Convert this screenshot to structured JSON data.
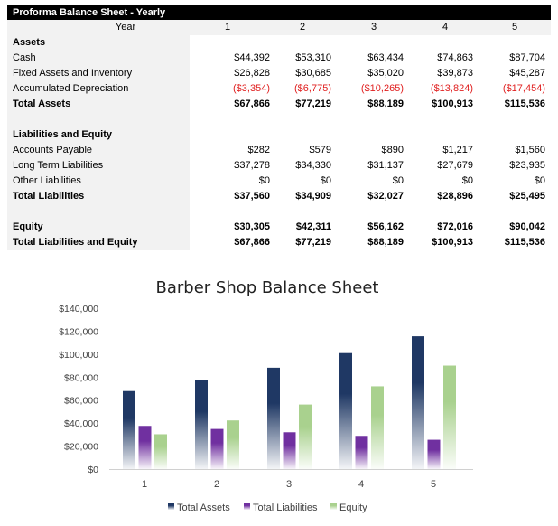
{
  "sheet": {
    "title": "Proforma Balance Sheet - Yearly",
    "year_label": "Year",
    "years": [
      "1",
      "2",
      "3",
      "4",
      "5"
    ],
    "rows": [
      {
        "label": "Assets",
        "bold": true,
        "values": []
      },
      {
        "label": "Cash",
        "values": [
          "$44,392",
          "$53,310",
          "$63,434",
          "$74,863",
          "$87,704"
        ]
      },
      {
        "label": "Fixed Assets and Inventory",
        "values": [
          "$26,828",
          "$30,685",
          "$35,020",
          "$39,873",
          "$45,287"
        ]
      },
      {
        "label": "Accumulated Depreciation",
        "negative": true,
        "values": [
          "($3,354)",
          "($6,775)",
          "($10,265)",
          "($13,824)",
          "($17,454)"
        ]
      },
      {
        "label": "Total Assets",
        "bold": true,
        "values": [
          "$67,866",
          "$77,219",
          "$88,189",
          "$100,913",
          "$115,536"
        ]
      },
      {
        "label": "",
        "values": []
      },
      {
        "label": "Liabilities and Equity",
        "bold": true,
        "values": []
      },
      {
        "label": "Accounts Payable",
        "values": [
          "$282",
          "$579",
          "$890",
          "$1,217",
          "$1,560"
        ]
      },
      {
        "label": "Long Term Liabilities",
        "values": [
          "$37,278",
          "$34,330",
          "$31,137",
          "$27,679",
          "$23,935"
        ]
      },
      {
        "label": "Other Liabilities",
        "values": [
          "$0",
          "$0",
          "$0",
          "$0",
          "$0"
        ]
      },
      {
        "label": "Total Liabilities",
        "bold": true,
        "values": [
          "$37,560",
          "$34,909",
          "$32,027",
          "$28,896",
          "$25,495"
        ]
      },
      {
        "label": "",
        "values": []
      },
      {
        "label": "Equity",
        "bold": true,
        "values": [
          "$30,305",
          "$42,311",
          "$56,162",
          "$72,016",
          "$90,042"
        ]
      },
      {
        "label": "Total Liabilities and Equity",
        "bold": true,
        "values": [
          "$67,866",
          "$77,219",
          "$88,189",
          "$100,913",
          "$115,536"
        ]
      }
    ]
  },
  "chart_data": {
    "type": "bar",
    "title": "Barber Shop Balance Sheet",
    "categories": [
      "1",
      "2",
      "3",
      "4",
      "5"
    ],
    "series": [
      {
        "name": "Total Assets",
        "color": "#1f3864",
        "values": [
          67866,
          77219,
          88189,
          100913,
          115536
        ]
      },
      {
        "name": "Total Liabilities",
        "color": "#7030a0",
        "values": [
          37560,
          34909,
          32027,
          28896,
          25495
        ]
      },
      {
        "name": "Equity",
        "color": "#a9d18e",
        "values": [
          30305,
          42311,
          56162,
          72016,
          90042
        ]
      }
    ],
    "ylim": [
      0,
      140000
    ],
    "yticks": [
      "$0",
      "$20,000",
      "$40,000",
      "$60,000",
      "$80,000",
      "$100,000",
      "$120,000",
      "$140,000"
    ],
    "grid": false,
    "legend": "bottom"
  }
}
